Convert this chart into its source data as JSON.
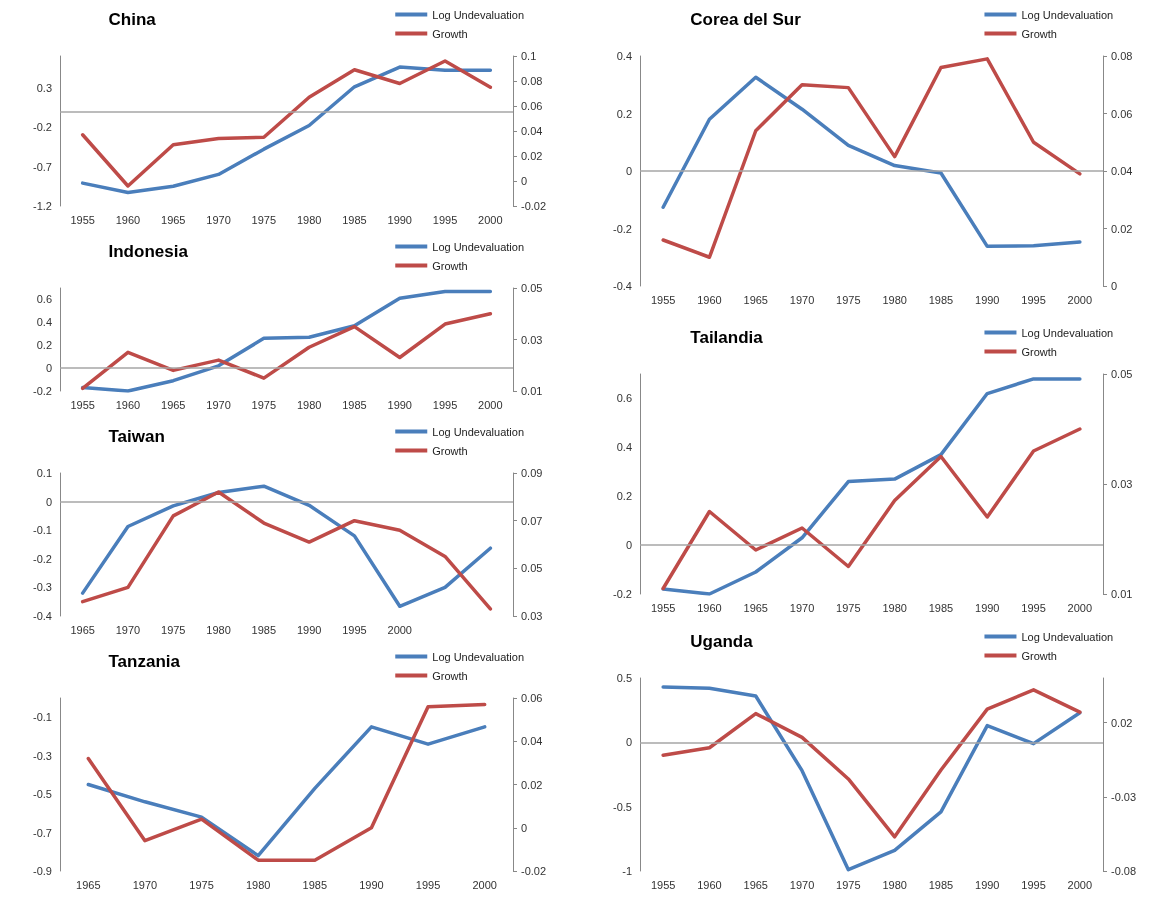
{
  "chart_data": [
    {
      "type": "line",
      "title": "China",
      "categories": [
        "1955",
        "1960",
        "1965",
        "1970",
        "1975",
        "1980",
        "1985",
        "1990",
        "1995",
        "2000"
      ],
      "legend": "top right",
      "marker": "none",
      "line_style": "solid",
      "grid": false,
      "series": [
        {
          "name": "Log Undevaluation",
          "color": "#4a7ebb",
          "values": [
            -0.91,
            -1.03,
            -0.95,
            -0.8,
            -0.48,
            -0.18,
            0.31,
            0.56,
            0.52,
            0.52
          ]
        },
        {
          "name": "Growth",
          "color": "#be4b48",
          "axis": "y2",
          "values": [
            0.037,
            -0.004,
            0.029,
            0.034,
            0.035,
            0.067,
            0.089,
            0.078,
            0.096,
            0.075
          ]
        }
      ],
      "ylim": [
        -1.2,
        0.7
      ],
      "yticks": [
        -1.2,
        -0.7,
        -0.2,
        0.3
      ],
      "y2lim": [
        -0.02,
        0.1
      ],
      "y2ticks": [
        -0.02,
        0,
        0.02,
        0.04,
        0.06,
        0.08,
        0.1
      ],
      "ref_lines": [
        {
          "axis": "y",
          "value": 0,
          "color": "#a6a6a6"
        }
      ]
    },
    {
      "type": "line",
      "title": "Corea del Sur",
      "categories": [
        "1955",
        "1960",
        "1965",
        "1970",
        "1975",
        "1980",
        "1985",
        "1990",
        "1995",
        "2000"
      ],
      "legend": "top right",
      "marker": "none",
      "line_style": "solid",
      "grid": false,
      "series": [
        {
          "name": "Log Undevaluation",
          "color": "#4a7ebb",
          "values": [
            -0.126,
            0.18,
            0.326,
            0.215,
            0.089,
            0.019,
            -0.007,
            -0.262,
            -0.26,
            -0.247
          ]
        },
        {
          "name": "Growth",
          "color": "#be4b48",
          "axis": "y2",
          "values": [
            0.016,
            0.01,
            0.054,
            0.07,
            0.069,
            0.045,
            0.076,
            0.079,
            0.05,
            0.039
          ]
        }
      ],
      "ylim": [
        -0.4,
        0.4
      ],
      "yticks": [
        -0.4,
        -0.2,
        0,
        0.2,
        0.4
      ],
      "y2lim": [
        0,
        0.08
      ],
      "y2ticks": [
        0,
        0.02,
        0.04,
        0.06,
        0.08
      ],
      "ref_lines": [
        {
          "axis": "y",
          "value": 0,
          "color": "#a6a6a6"
        }
      ]
    },
    {
      "type": "line",
      "title": "Indonesia",
      "categories": [
        "1955",
        "1960",
        "1965",
        "1970",
        "1975",
        "1980",
        "1985",
        "1990",
        "1995",
        "2000"
      ],
      "legend": "top right",
      "marker": "none",
      "line_style": "solid",
      "grid": false,
      "series": [
        {
          "name": "Log Undevaluation",
          "color": "#4a7ebb",
          "values": [
            -0.17,
            -0.2,
            -0.11,
            0.02,
            0.26,
            0.27,
            0.37,
            0.61,
            0.67,
            0.67
          ]
        },
        {
          "name": "Growth",
          "color": "#be4b48",
          "axis": "y2",
          "values": [
            0.011,
            0.025,
            0.018,
            0.022,
            0.015,
            0.027,
            0.035,
            0.023,
            0.036,
            0.04
          ]
        }
      ],
      "ylim": [
        -0.2,
        0.7
      ],
      "yticks": [
        -0.2,
        0,
        0.2,
        0.4,
        0.6
      ],
      "y2lim": [
        0.01,
        0.05
      ],
      "y2ticks": [
        0.01,
        0.03,
        0.05
      ],
      "ref_lines": [
        {
          "axis": "y",
          "value": 0,
          "color": "#a6a6a6"
        }
      ]
    },
    {
      "type": "line",
      "title": "Tailandia",
      "categories": [
        "1955",
        "1960",
        "1965",
        "1970",
        "1975",
        "1980",
        "1985",
        "1990",
        "1995",
        "2000"
      ],
      "legend": "top right",
      "marker": "none",
      "line_style": "solid",
      "grid": false,
      "series": [
        {
          "name": "Log Undevaluation",
          "color": "#4a7ebb",
          "values": [
            -0.18,
            -0.2,
            -0.11,
            0.03,
            0.26,
            0.27,
            0.37,
            0.62,
            0.68,
            0.68
          ]
        },
        {
          "name": "Growth",
          "color": "#be4b48",
          "axis": "y2",
          "values": [
            0.011,
            0.025,
            0.018,
            0.022,
            0.015,
            0.027,
            0.035,
            0.024,
            0.036,
            0.04
          ]
        }
      ],
      "ylim": [
        -0.2,
        0.7
      ],
      "yticks": [
        -0.2,
        0,
        0.2,
        0.4,
        0.6
      ],
      "y2lim": [
        0.01,
        0.05
      ],
      "y2ticks": [
        0.01,
        0.03,
        0.05
      ],
      "ref_lines": [
        {
          "axis": "y",
          "value": 0,
          "color": "#a6a6a6"
        }
      ]
    },
    {
      "type": "line",
      "title": "Taiwan",
      "categories": [
        "1965",
        "1970",
        "1975",
        "1980",
        "1985",
        "1990",
        "1995",
        "2000",
        null,
        null
      ],
      "legend": "top right",
      "marker": "none",
      "line_style": "solid",
      "grid": false,
      "series": [
        {
          "name": "Log Undevaluation",
          "color": "#4a7ebb",
          "values": [
            -0.32,
            -0.087,
            -0.015,
            0.032,
            0.054,
            -0.013,
            -0.12,
            -0.366,
            -0.3,
            -0.163
          ]
        },
        {
          "name": "Growth",
          "color": "#be4b48",
          "axis": "y2",
          "values": [
            0.036,
            0.042,
            0.072,
            0.082,
            0.069,
            0.061,
            0.07,
            0.066,
            0.055,
            0.033
          ]
        }
      ],
      "ylim": [
        -0.4,
        0.1
      ],
      "yticks": [
        -0.4,
        -0.3,
        -0.2,
        -0.1,
        0,
        0.1
      ],
      "y2lim": [
        0.03,
        0.09
      ],
      "y2ticks": [
        0.03,
        0.05,
        0.07,
        0.09
      ],
      "ref_lines": [
        {
          "axis": "y",
          "value": 0,
          "color": "#a6a6a6"
        }
      ]
    },
    {
      "type": "line",
      "title": "Tanzania",
      "categories": [
        "1965",
        "1970",
        "1975",
        "1980",
        "1985",
        "1990",
        "1995",
        "2000"
      ],
      "legend": "top right",
      "marker": "none",
      "line_style": "solid",
      "grid": false,
      "series": [
        {
          "name": "Log Undevaluation",
          "color": "#4a7ebb",
          "values": [
            -0.45,
            -0.54,
            -0.62,
            -0.82,
            -0.47,
            -0.15,
            -0.24,
            -0.15
          ]
        },
        {
          "name": "Growth",
          "color": "#be4b48",
          "axis": "y2",
          "values": [
            0.032,
            -0.006,
            0.004,
            -0.015,
            -0.015,
            0,
            0.056,
            0.057
          ]
        }
      ],
      "ylim": [
        -0.9,
        0
      ],
      "yticks": [
        -0.9,
        -0.7,
        -0.5,
        -0.3,
        -0.1
      ],
      "y2lim": [
        -0.02,
        0.06
      ],
      "y2ticks": [
        -0.02,
        0,
        0.02,
        0.04,
        0.06
      ]
    },
    {
      "type": "line",
      "title": "Uganda",
      "categories": [
        "1955",
        "1960",
        "1965",
        "1970",
        "1975",
        "1980",
        "1985",
        "1990",
        "1995",
        "2000"
      ],
      "legend": "top right",
      "marker": "none",
      "line_style": "solid",
      "grid": false,
      "series": [
        {
          "name": "Log Undevaluation",
          "color": "#4a7ebb",
          "values": [
            0.43,
            0.42,
            0.36,
            -0.22,
            -0.99,
            -0.84,
            -0.54,
            0.13,
            -0.01,
            0.23
          ]
        },
        {
          "name": "Growth",
          "color": "#be4b48",
          "axis": "y2",
          "values": [
            -0.002,
            0.003,
            0.026,
            0.01,
            -0.018,
            -0.057,
            -0.012,
            0.029,
            0.042,
            0.027
          ]
        }
      ],
      "ylim": [
        -1,
        0.5
      ],
      "yticks": [
        -1,
        -0.5,
        0,
        0.5
      ],
      "y2lim": [
        -0.08,
        0.05
      ],
      "y2ticks": [
        -0.08,
        -0.03,
        0.02
      ],
      "ref_lines": [
        {
          "axis": "y",
          "value": 0,
          "color": "#a6a6a6"
        }
      ]
    }
  ]
}
